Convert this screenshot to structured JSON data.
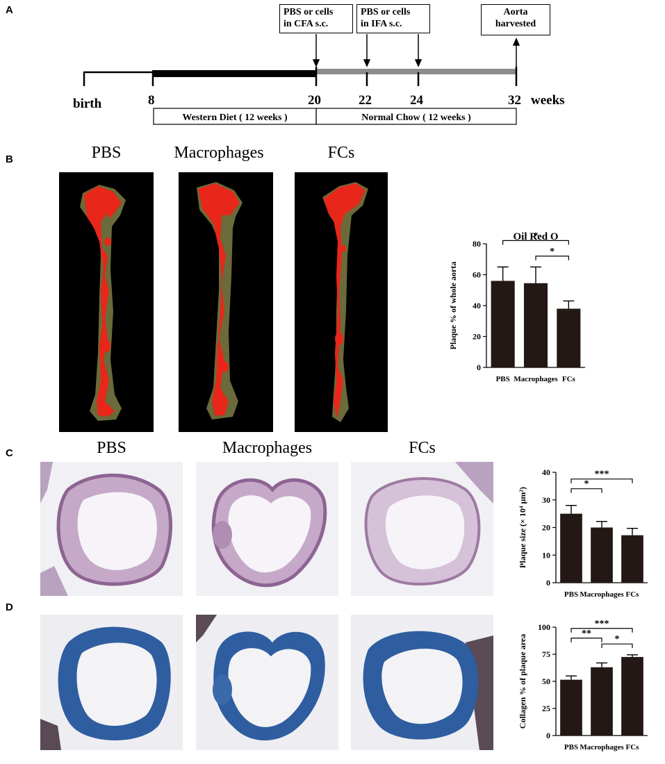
{
  "panels": {
    "a": "A",
    "b": "B",
    "c": "C",
    "d": "D"
  },
  "timeline": {
    "injection1": [
      "PBS or cells",
      "in CFA s.c."
    ],
    "injection2": [
      "PBS or cells",
      "in IFA s.c."
    ],
    "harvest": [
      "Aorta",
      "harvested"
    ],
    "ticks": [
      "birth",
      "8",
      "20",
      "22",
      "24",
      "32"
    ],
    "unit": "weeks",
    "diet1": "Western Diet ( 12 weeks )",
    "diet2": "Normal Chow ( 12 weeks )"
  },
  "photo_titles": [
    "PBS",
    "Macrophages",
    "FCs"
  ],
  "colors": {
    "bar": "#231815",
    "plaque_red": "#e8261a",
    "tissue_olive": "#6b6a3a",
    "he_pink": "#a77fa8",
    "masson_blue": "#2f5ea0"
  },
  "chart_data": [
    {
      "type": "bar",
      "title": "Oil Red O",
      "categories": [
        "PBS",
        "Macrophages",
        "FCs"
      ],
      "values": [
        56,
        54.5,
        38
      ],
      "errors": [
        9,
        10.5,
        5
      ],
      "ylabel": "Plaque % of whole aorta",
      "ylim": [
        0,
        80
      ],
      "yticks": [
        0,
        20,
        40,
        60,
        80
      ],
      "sig": [
        {
          "from": 0,
          "to": 2,
          "label": "*"
        },
        {
          "from": 1,
          "to": 2,
          "label": "*"
        }
      ]
    },
    {
      "type": "bar",
      "title": "",
      "categories": [
        "PBS",
        "Macrophages",
        "FCs"
      ],
      "values": [
        25,
        20,
        17.2
      ],
      "errors": [
        3,
        2.2,
        2.5
      ],
      "ylabel": "Plaque size (× 10⁴ µm²)",
      "ylim": [
        0,
        40
      ],
      "yticks": [
        0,
        10,
        20,
        30,
        40
      ],
      "sig": [
        {
          "from": 0,
          "to": 1,
          "label": "*"
        },
        {
          "from": 0,
          "to": 2,
          "label": "***"
        }
      ]
    },
    {
      "type": "bar",
      "title": "",
      "categories": [
        "PBS",
        "Macrophages",
        "FCs"
      ],
      "values": [
        51.5,
        63,
        72.5
      ],
      "errors": [
        3.5,
        4,
        2
      ],
      "ylabel": "Collagen % of plaque area",
      "ylim": [
        0,
        100
      ],
      "yticks": [
        0,
        25,
        50,
        75,
        100
      ],
      "sig": [
        {
          "from": 0,
          "to": 1,
          "label": "**"
        },
        {
          "from": 0,
          "to": 2,
          "label": "***"
        },
        {
          "from": 1,
          "to": 2,
          "label": "*"
        }
      ]
    }
  ]
}
